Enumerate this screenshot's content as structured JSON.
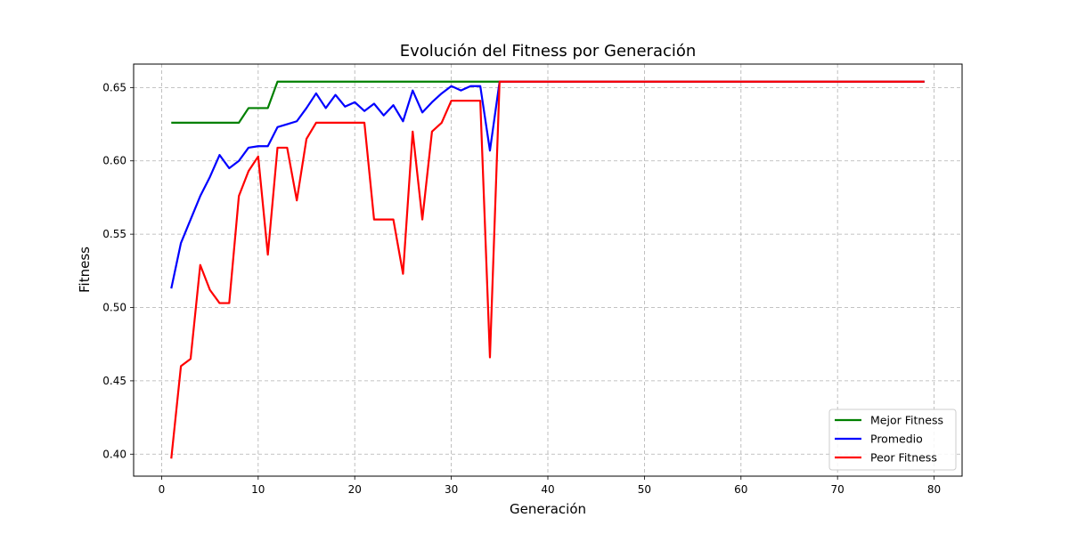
{
  "chart_data": {
    "type": "line",
    "title": "Evolución del Fitness por Generación",
    "xlabel": "Generación",
    "ylabel": "Fitness",
    "xlim": [
      -2.9,
      82.9
    ],
    "ylim": [
      0.385,
      0.666
    ],
    "xticks": [
      0,
      10,
      20,
      30,
      40,
      50,
      60,
      70,
      80
    ],
    "yticks": [
      0.4,
      0.45,
      0.5,
      0.55,
      0.6,
      0.65
    ],
    "grid": true,
    "legend_position": "bottom-right",
    "series": [
      {
        "name": "Mejor Fitness",
        "color": "#008000",
        "points": [
          [
            1,
            0.626
          ],
          [
            8,
            0.626
          ],
          [
            9,
            0.636
          ],
          [
            11,
            0.636
          ],
          [
            12,
            0.654
          ],
          [
            79,
            0.654
          ]
        ]
      },
      {
        "name": "Promedio",
        "color": "#0000ff",
        "points": [
          [
            1,
            0.513
          ],
          [
            2,
            0.544
          ],
          [
            3,
            0.56
          ],
          [
            4,
            0.576
          ],
          [
            5,
            0.589
          ],
          [
            6,
            0.604
          ],
          [
            7,
            0.595
          ],
          [
            8,
            0.6
          ],
          [
            9,
            0.609
          ],
          [
            10,
            0.61
          ],
          [
            11,
            0.61
          ],
          [
            12,
            0.623
          ],
          [
            13,
            0.625
          ],
          [
            14,
            0.627
          ],
          [
            15,
            0.636
          ],
          [
            16,
            0.646
          ],
          [
            17,
            0.636
          ],
          [
            18,
            0.645
          ],
          [
            19,
            0.637
          ],
          [
            20,
            0.64
          ],
          [
            21,
            0.634
          ],
          [
            22,
            0.639
          ],
          [
            23,
            0.631
          ],
          [
            24,
            0.638
          ],
          [
            25,
            0.627
          ],
          [
            26,
            0.648
          ],
          [
            27,
            0.633
          ],
          [
            28,
            0.64
          ],
          [
            29,
            0.646
          ],
          [
            30,
            0.651
          ],
          [
            31,
            0.648
          ],
          [
            32,
            0.651
          ],
          [
            33,
            0.651
          ],
          [
            34,
            0.607
          ],
          [
            35,
            0.654
          ],
          [
            79,
            0.654
          ]
        ]
      },
      {
        "name": "Peor Fitness",
        "color": "#ff0000",
        "points": [
          [
            1,
            0.397
          ],
          [
            2,
            0.46
          ],
          [
            3,
            0.465
          ],
          [
            4,
            0.529
          ],
          [
            5,
            0.512
          ],
          [
            6,
            0.503
          ],
          [
            7,
            0.503
          ],
          [
            8,
            0.576
          ],
          [
            9,
            0.593
          ],
          [
            10,
            0.603
          ],
          [
            11,
            0.536
          ],
          [
            12,
            0.609
          ],
          [
            13,
            0.609
          ],
          [
            14,
            0.573
          ],
          [
            15,
            0.615
          ],
          [
            16,
            0.626
          ],
          [
            17,
            0.626
          ],
          [
            18,
            0.626
          ],
          [
            19,
            0.626
          ],
          [
            20,
            0.626
          ],
          [
            21,
            0.626
          ],
          [
            22,
            0.56
          ],
          [
            23,
            0.56
          ],
          [
            24,
            0.56
          ],
          [
            25,
            0.523
          ],
          [
            26,
            0.62
          ],
          [
            27,
            0.56
          ],
          [
            28,
            0.62
          ],
          [
            29,
            0.626
          ],
          [
            30,
            0.641
          ],
          [
            31,
            0.641
          ],
          [
            32,
            0.641
          ],
          [
            33,
            0.641
          ],
          [
            34,
            0.466
          ],
          [
            35,
            0.654
          ],
          [
            79,
            0.654
          ]
        ]
      }
    ]
  }
}
